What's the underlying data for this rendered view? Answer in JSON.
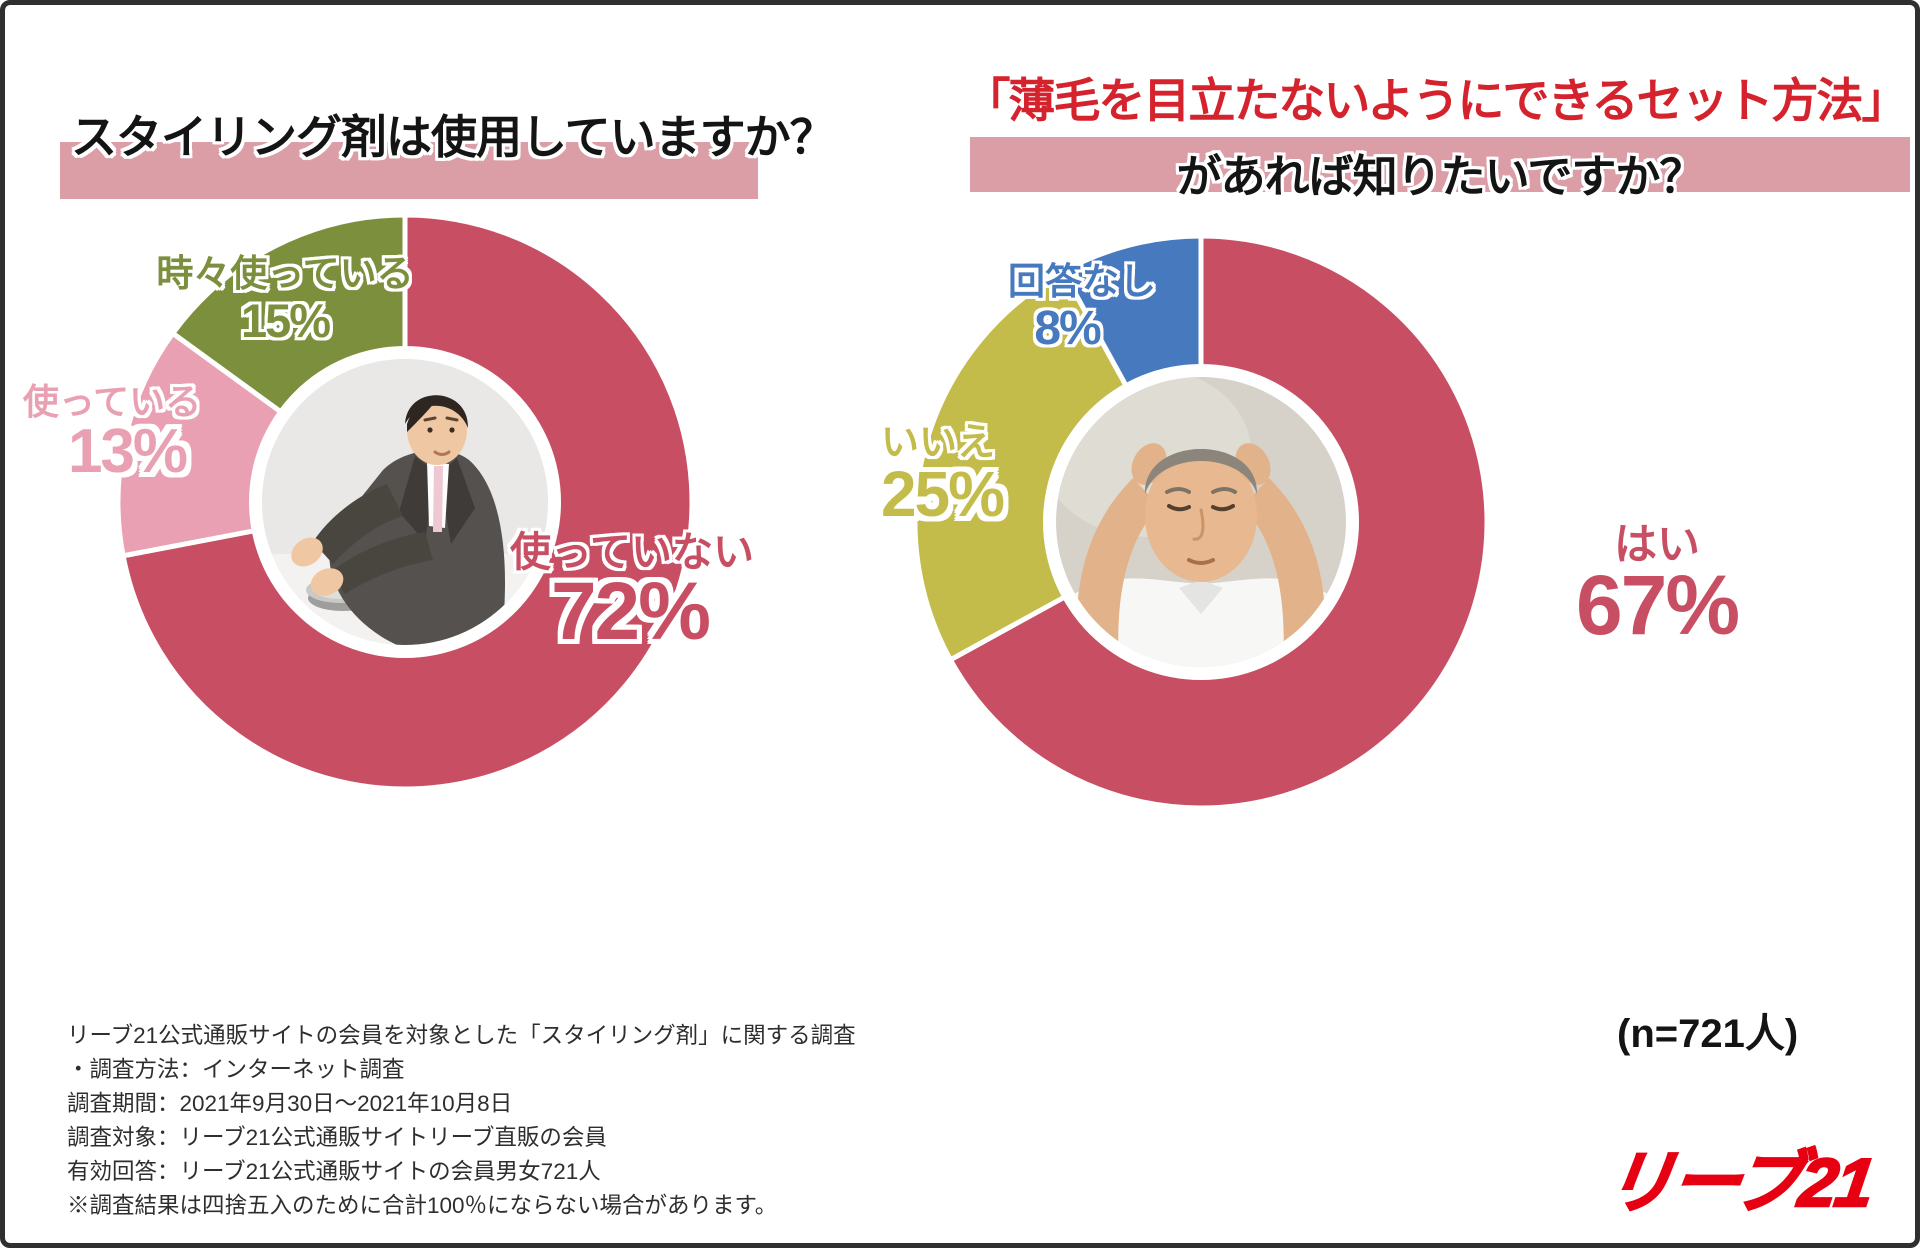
{
  "left_title": "スタイリング剤は使用していますか？",
  "right_title_line1": "「薄毛を目立たないようにできるセット方法」",
  "right_title_line2": "があれば知りたいですか？",
  "chart_data": [
    {
      "type": "pie",
      "title": "スタイリング剤は使用していますか？",
      "donut": true,
      "start_angle_deg": 0,
      "direction": "clockwise",
      "slices": [
        {
          "label": "使っていない",
          "value": 72,
          "pct_label": "72%",
          "color": "#c84f63"
        },
        {
          "label": "使っている",
          "value": 13,
          "pct_label": "13%",
          "color": "#e9a0b2"
        },
        {
          "label": "時々使っている",
          "value": 15,
          "pct_label": "15%",
          "color": "#7c8f3d"
        }
      ]
    },
    {
      "type": "pie",
      "title": "「薄毛を目立たないようにできるセット方法」があれば知りたいですか？",
      "donut": true,
      "start_angle_deg": 0,
      "direction": "clockwise",
      "slices": [
        {
          "label": "はい",
          "value": 67,
          "pct_label": "67%",
          "color": "#c84f63"
        },
        {
          "label": "いいえ",
          "value": 25,
          "pct_label": "25%",
          "color": "#c3bb4a"
        },
        {
          "label": "回答なし",
          "value": 8,
          "pct_label": "8%",
          "color": "#4679bd"
        }
      ]
    }
  ],
  "sample_size_note": "(n=721人)",
  "survey_notes": [
    "リーブ21公式通販サイトの会員を対象とした「スタイリング剤」に関する調査",
    "・調査方法：インターネット調査",
    "調査期間：2021年9月30日～2021年10月8日",
    "調査対象：リーブ21公式通販サイトリーブ直販の会員",
    "有効回答：リーブ21公式通販サイトの会員男女721人",
    "※調査結果は四捨五入のために合計100％にならない場合があります。"
  ],
  "logo_text": "リーブ21",
  "colors": {
    "title_band": "#db9ea7",
    "title_red": "#d5232e",
    "logo_red": "#e60012",
    "slice_red": "#c84f63",
    "slice_pink": "#e9a0b2",
    "slice_green": "#7c8f3d",
    "slice_yellow": "#c3bb4a",
    "slice_blue": "#4679bd"
  }
}
